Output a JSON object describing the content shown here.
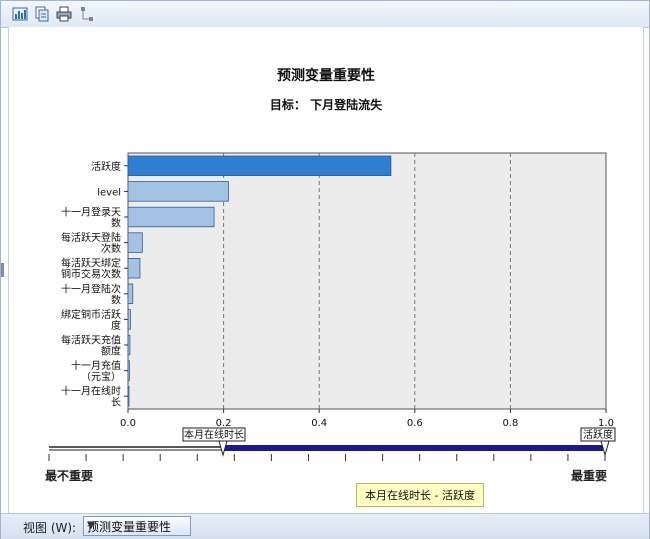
{
  "toolbar": {
    "icons": [
      "chart-edit-icon",
      "copy-icon",
      "print-icon",
      "hierarchy-icon"
    ]
  },
  "chart_title": "预测变量重要性",
  "chart_subtitle": "目标：  下月登陆流失",
  "chart_data": {
    "type": "bar",
    "orientation": "horizontal",
    "categories": [
      [
        "活跃度"
      ],
      [
        "level"
      ],
      [
        "十一月登录天",
        "数"
      ],
      [
        "每活跃天登陆",
        "次数"
      ],
      [
        "每活跃天绑定",
        "铜币交易次数"
      ],
      [
        "十一月登陆次",
        "数"
      ],
      [
        "绑定铜币活跃",
        "度"
      ],
      [
        "每活跃天充值",
        "额度"
      ],
      [
        "十一月充值",
        "（元宝）"
      ],
      [
        "十一月在线时",
        "长"
      ]
    ],
    "values": [
      0.55,
      0.21,
      0.18,
      0.03,
      0.025,
      0.01,
      0.005,
      0.004,
      0.003,
      0.002
    ],
    "bar_colors": [
      "#2e7fd0",
      "#a4c2e4",
      "#a4c2e4",
      "#a4c2e4",
      "#a4c2e4",
      "#a4c2e4",
      "#a4c2e4",
      "#a4c2e4",
      "#a4c2e4",
      "#a4c2e4"
    ],
    "xlim": [
      0,
      1
    ],
    "xticks": [
      "0.0",
      "0.2",
      "0.4",
      "0.6",
      "0.8",
      "1.0"
    ],
    "grid": "vertical dashed"
  },
  "slider": {
    "left_handle_label": "本月在线时长",
    "right_handle_label": "活跃度",
    "min_label": "最不重要",
    "max_label": "最重要"
  },
  "tooltip": "本月在线时长 - 活跃度",
  "statusbar": {
    "view_label": "视图 (W):",
    "view_value": "预测变量重要性"
  },
  "colors": {
    "highlight_bar": "#2e7fd0",
    "bar": "#a4c2e4",
    "plot_bg": "#ececec",
    "slider_track": "#1a1a8c"
  }
}
